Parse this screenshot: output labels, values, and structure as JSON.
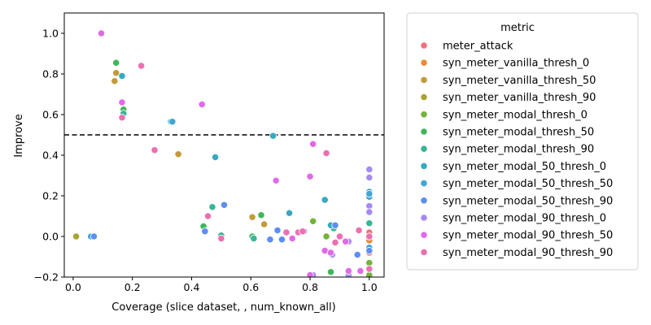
{
  "chart_data": {
    "type": "scatter",
    "title": "",
    "xlabel": "Coverage (slice dataset, , num_known_all)",
    "ylabel": "Improve",
    "xlim": [
      -0.03,
      1.05
    ],
    "ylim": [
      -0.2,
      1.1
    ],
    "x_ticks": [
      0.0,
      0.2,
      0.4,
      0.6,
      0.8,
      1.0
    ],
    "y_ticks": [
      -0.2,
      0.0,
      0.2,
      0.4,
      0.6,
      0.8,
      1.0
    ],
    "x_tick_labels": [
      "0.0",
      "0.2",
      "0.4",
      "0.6",
      "0.8",
      "1.0"
    ],
    "y_tick_labels": [
      "−0.2",
      "0.0",
      "0.2",
      "0.4",
      "0.6",
      "0.8",
      "1.0"
    ],
    "grid": false,
    "reference_line": {
      "y": 0.5,
      "style": "dashed",
      "color": "#000000"
    },
    "legend": {
      "title": "metric",
      "placement": "outside-right"
    },
    "series": [
      {
        "name": "meter_attack",
        "color": "#f0717b",
        "points": [
          [
            1.0,
            -0.08
          ],
          [
            1.0,
            0.02
          ]
        ]
      },
      {
        "name": "syn_meter_vanilla_thresh_0",
        "color": "#e88b3a",
        "points": [
          [
            1.0,
            -0.02
          ],
          [
            1.0,
            0.0
          ]
        ]
      },
      {
        "name": "syn_meter_vanilla_thresh_50",
        "color": "#c49a3a",
        "points": [
          [
            0.14,
            0.765
          ],
          [
            0.145,
            0.805
          ],
          [
            0.355,
            0.405
          ],
          [
            0.605,
            0.095
          ],
          [
            0.645,
            0.06
          ]
        ]
      },
      {
        "name": "syn_meter_vanilla_thresh_90",
        "color": "#a8a431",
        "points": [
          [
            0.01,
            0.0
          ],
          [
            1.0,
            -0.13
          ]
        ]
      },
      {
        "name": "syn_meter_modal_thresh_0",
        "color": "#74b23b",
        "points": [
          [
            0.81,
            0.075
          ],
          [
            0.855,
            0.0
          ],
          [
            1.0,
            -0.19
          ],
          [
            1.0,
            -0.13
          ]
        ]
      },
      {
        "name": "syn_meter_modal_thresh_50",
        "color": "#3fb75a",
        "points": [
          [
            0.145,
            0.855
          ],
          [
            0.17,
            0.625
          ],
          [
            0.44,
            0.05
          ],
          [
            0.635,
            0.105
          ],
          [
            0.87,
            -0.175
          ],
          [
            0.605,
            0.0
          ]
        ]
      },
      {
        "name": "syn_meter_modal_thresh_90",
        "color": "#37b597",
        "points": [
          [
            0.17,
            0.605
          ],
          [
            0.47,
            0.145
          ],
          [
            0.5,
            0.005
          ],
          [
            0.61,
            -0.01
          ],
          [
            0.88,
            0.04
          ],
          [
            1.0,
            0.065
          ]
        ]
      },
      {
        "name": "syn_meter_modal_50_thresh_0",
        "color": "#38a8c2",
        "points": [
          [
            0.165,
            0.79
          ],
          [
            0.33,
            0.565
          ],
          [
            0.48,
            0.39
          ],
          [
            0.675,
            0.495
          ],
          [
            0.73,
            0.115
          ],
          [
            0.85,
            0.18
          ],
          [
            0.87,
            0.055
          ],
          [
            1.0,
            0.22
          ],
          [
            1.0,
            0.195
          ]
        ]
      },
      {
        "name": "syn_meter_modal_50_thresh_50",
        "color": "#3fa6d6",
        "points": [
          [
            0.335,
            0.565
          ],
          [
            0.06,
            0.0
          ],
          [
            1.0,
            0.21
          ],
          [
            1.0,
            -0.055
          ]
        ]
      },
      {
        "name": "syn_meter_modal_50_thresh_90",
        "color": "#5d8ef2",
        "points": [
          [
            0.07,
            0.0
          ],
          [
            0.445,
            0.025
          ],
          [
            0.51,
            0.155
          ],
          [
            0.665,
            -0.015
          ],
          [
            0.69,
            0.03
          ],
          [
            0.705,
            -0.015
          ],
          [
            0.885,
            0.055
          ],
          [
            0.96,
            -0.09
          ],
          [
            1.0,
            -0.07
          ]
        ]
      },
      {
        "name": "syn_meter_modal_90_thresh_0",
        "color": "#a48af4",
        "points": [
          [
            0.78,
            0.025
          ],
          [
            0.875,
            -0.09
          ],
          [
            0.93,
            -0.025
          ],
          [
            1.0,
            0.33
          ],
          [
            1.0,
            0.29
          ],
          [
            1.0,
            0.15
          ],
          [
            1.0,
            0.12
          ],
          [
            0.93,
            -0.19
          ],
          [
            0.81,
            -0.19
          ]
        ]
      },
      {
        "name": "syn_meter_modal_90_thresh_50",
        "color": "#e06ae8",
        "points": [
          [
            0.095,
            1.0
          ],
          [
            0.165,
            0.66
          ],
          [
            0.435,
            0.65
          ],
          [
            0.685,
            0.275
          ],
          [
            0.74,
            -0.01
          ],
          [
            0.8,
            0.295
          ],
          [
            0.81,
            0.455
          ],
          [
            0.85,
            -0.07
          ],
          [
            0.87,
            -0.08
          ],
          [
            0.92,
            -0.025
          ],
          [
            0.93,
            -0.17
          ],
          [
            0.8,
            -0.19
          ],
          [
            0.97,
            -0.17
          ]
        ]
      },
      {
        "name": "syn_meter_modal_90_thresh_90",
        "color": "#ec6fb1",
        "points": [
          [
            0.165,
            0.585
          ],
          [
            0.23,
            0.84
          ],
          [
            0.275,
            0.425
          ],
          [
            0.455,
            0.1
          ],
          [
            0.5,
            -0.01
          ],
          [
            0.72,
            0.02
          ],
          [
            0.76,
            0.02
          ],
          [
            0.775,
            0.025
          ],
          [
            0.855,
            0.41
          ],
          [
            0.885,
            -0.03
          ],
          [
            0.9,
            0.0
          ],
          [
            0.965,
            0.03
          ],
          [
            1.0,
            -0.16
          ],
          [
            1.0,
            0.0
          ]
        ]
      }
    ]
  }
}
